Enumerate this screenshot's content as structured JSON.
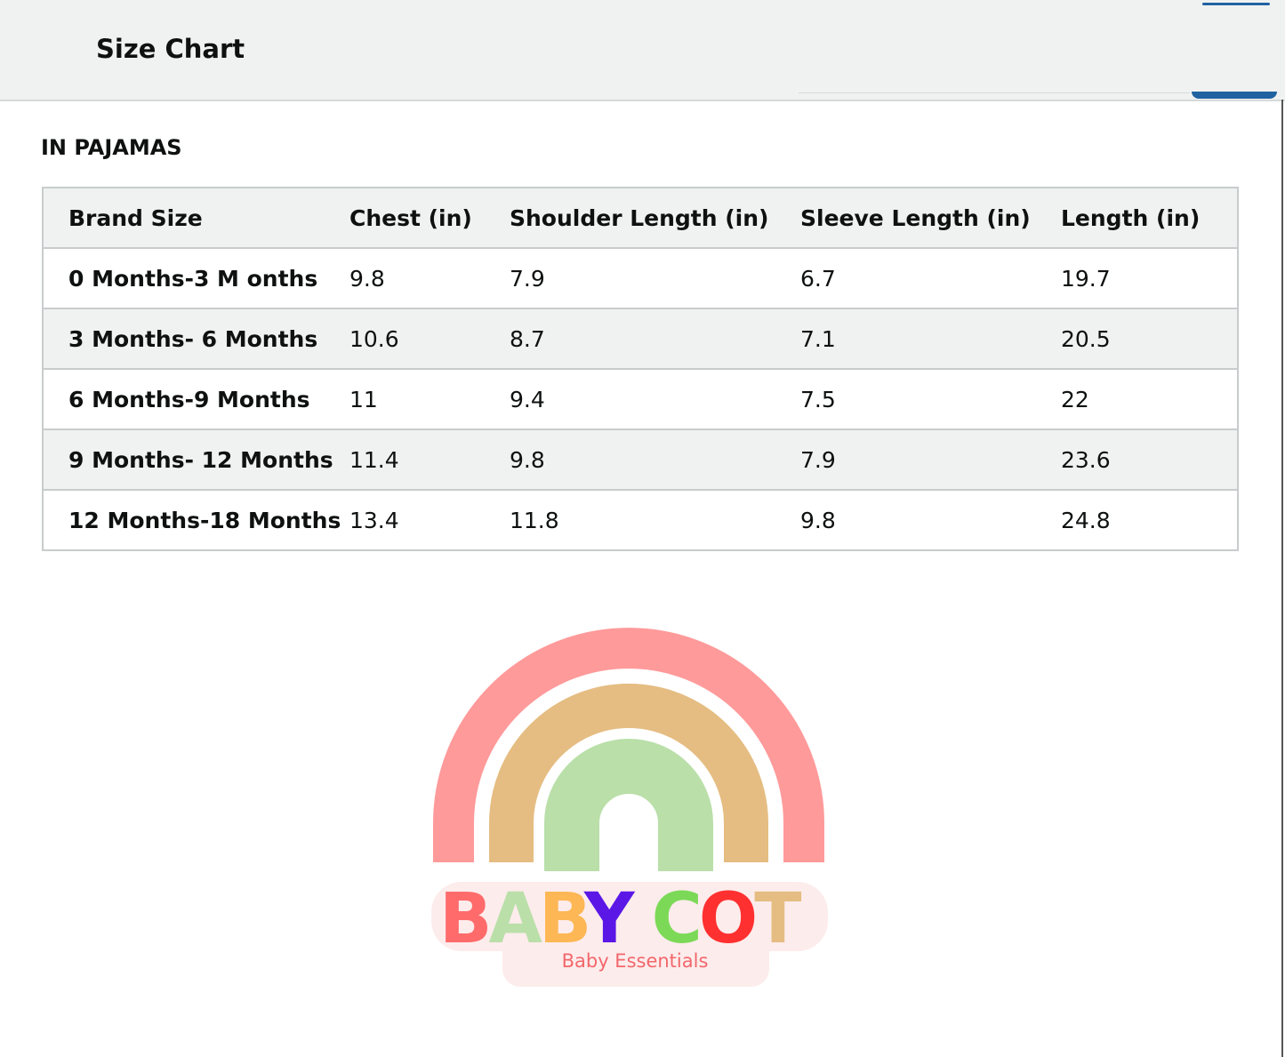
{
  "header": {
    "title": "Size Chart"
  },
  "section_title": "IN PAJAMAS",
  "table": {
    "columns": [
      "Brand Size",
      "Chest (in)",
      "Shoulder Length (in)",
      "Sleeve Length (in)",
      "Length (in)"
    ],
    "rows": [
      [
        "0 Months-3 M onths",
        "9.8",
        "7.9",
        "6.7",
        "19.7"
      ],
      [
        "3 Months- 6 Months",
        "10.6",
        "8.7",
        "7.1",
        "20.5"
      ],
      [
        "6 Months-9 Months",
        "11",
        "9.4",
        "7.5",
        "22"
      ],
      [
        "9 Months- 12 Months",
        "11.4",
        "9.8",
        "7.9",
        "23.6"
      ],
      [
        "12 Months-18 Months",
        "13.4",
        "11.8",
        "9.8",
        "24.8"
      ]
    ]
  },
  "logo": {
    "brand": "BABY COT",
    "tagline": "Baby Essentials",
    "colors": {
      "pink": "#ff9a9a",
      "tan": "#e5bd82",
      "green": "#badfa9",
      "purple": "#5b17e6",
      "red": "#ff3030",
      "bright_green": "#7cd957"
    }
  },
  "colors": {
    "accent": "#2162a1"
  }
}
